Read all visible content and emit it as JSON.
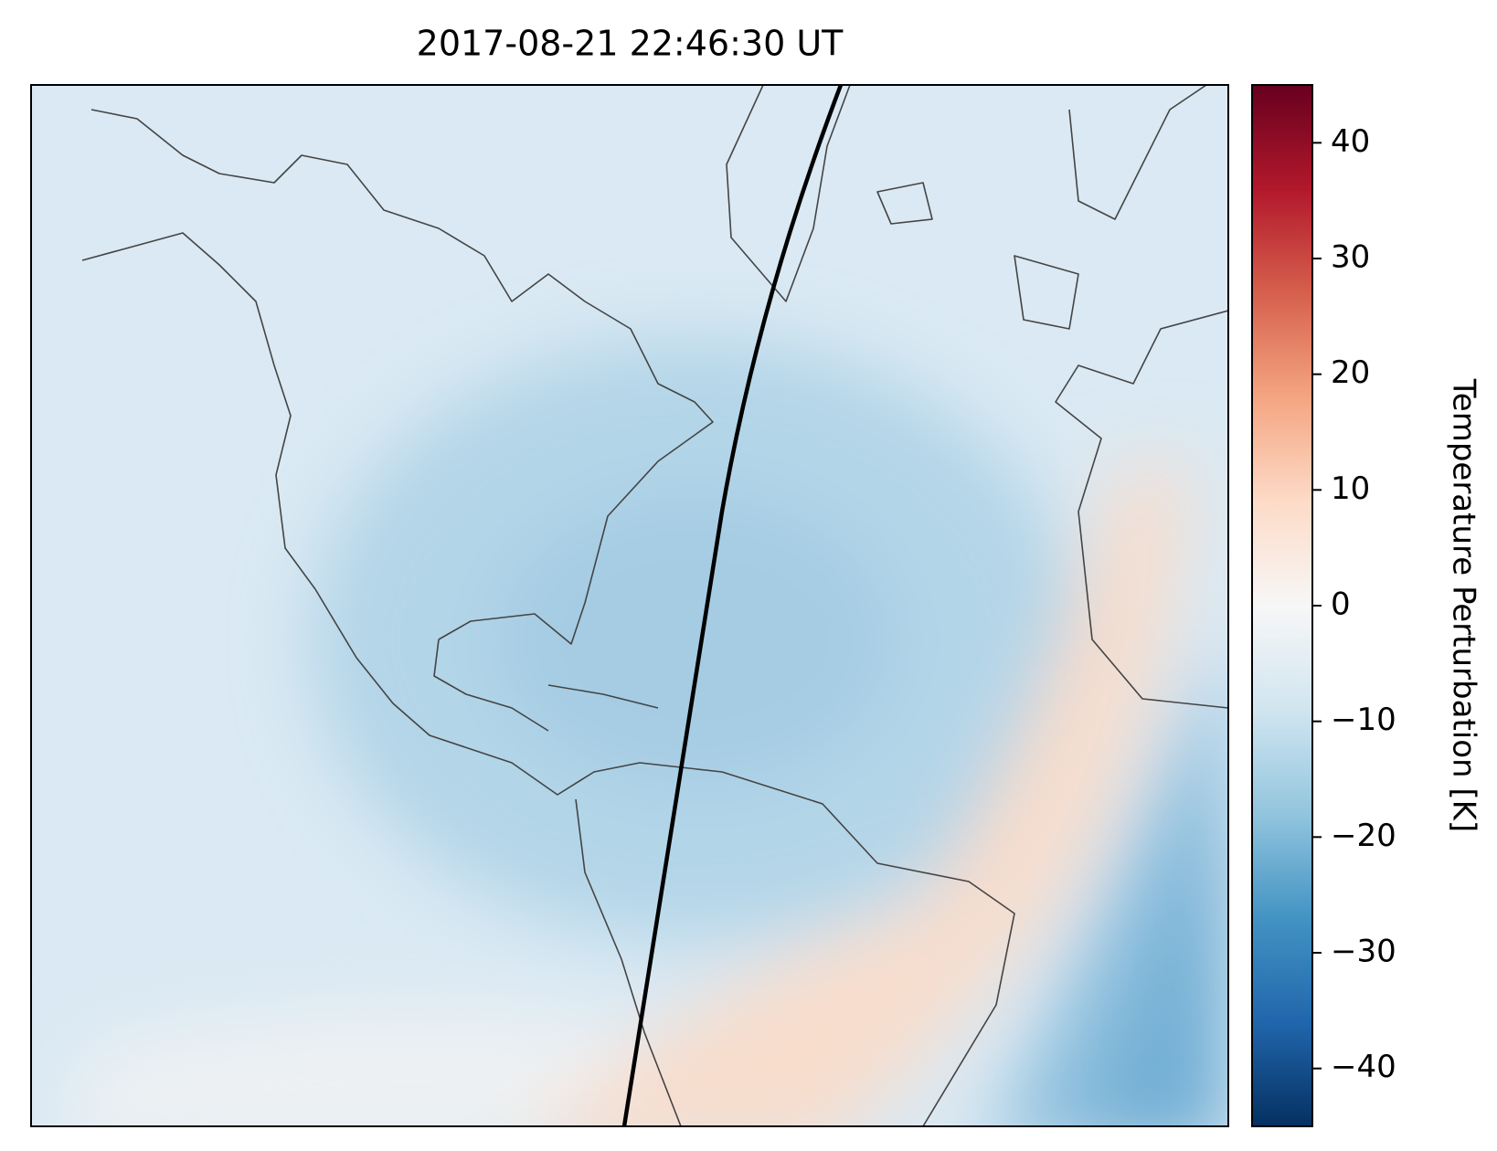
{
  "chart_data": {
    "type": "map",
    "title": "2017-08-21 22:46:30 UT",
    "colorbar_label": "Temperature Perturbation [K]",
    "clim": [
      -45,
      45
    ],
    "cticks": [
      {
        "value": -40,
        "label": "−40"
      },
      {
        "value": -30,
        "label": "−30"
      },
      {
        "value": -20,
        "label": "−20"
      },
      {
        "value": -10,
        "label": "−10"
      },
      0,
      10,
      20,
      30,
      40
    ]
  }
}
